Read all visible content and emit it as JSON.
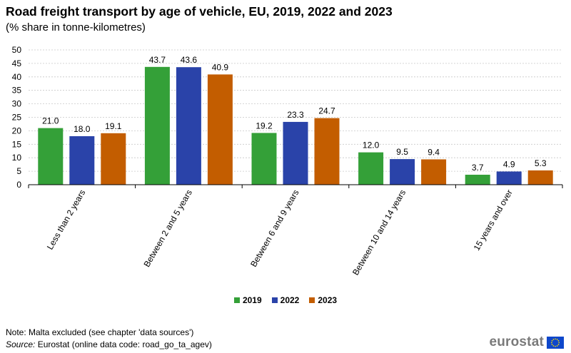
{
  "chart_data": {
    "type": "bar",
    "title": "Road freight transport by age of vehicle, EU, 2019, 2022 and 2023",
    "subtitle": "(% share in tonne-kilometres)",
    "categories": [
      "Less than 2 years",
      "Between 2 and 5 years",
      "Between 6 and 9 years",
      "Between 10 and 14 years",
      "15 years and over"
    ],
    "series": [
      {
        "name": "2019",
        "color": "#34a038",
        "values": [
          21.0,
          43.7,
          19.2,
          12.0,
          3.7
        ],
        "labels": [
          "21.0",
          "43.7",
          "19.2",
          "12.0",
          "3.7"
        ]
      },
      {
        "name": "2022",
        "color": "#2a43a9",
        "values": [
          18.0,
          43.6,
          23.3,
          9.5,
          4.9
        ],
        "labels": [
          "18.0",
          "43.6",
          "23.3",
          "9.5",
          "4.9"
        ]
      },
      {
        "name": "2023",
        "color": "#c35d00",
        "values": [
          19.1,
          40.9,
          24.7,
          9.4,
          5.3
        ],
        "labels": [
          "19.1",
          "40.9",
          "24.7",
          "9.4",
          "5.3"
        ]
      }
    ],
    "ylim": [
      0,
      50
    ],
    "yticks": [
      "0",
      "5",
      "10",
      "15",
      "20",
      "25",
      "30",
      "35",
      "40",
      "45",
      "50"
    ],
    "xlabel": "",
    "ylabel": "",
    "grid": true,
    "legend_position": "bottom-center"
  },
  "footer": {
    "note": "Note: Malta excluded (see chapter 'data sources')",
    "source_label": "Source:",
    "source_text": "Eurostat (online data code: road_go_ta_agev)"
  },
  "branding": {
    "logo_text": "eurostat",
    "flag_color": "#0e47cb",
    "star_color": "#ffdd00"
  }
}
